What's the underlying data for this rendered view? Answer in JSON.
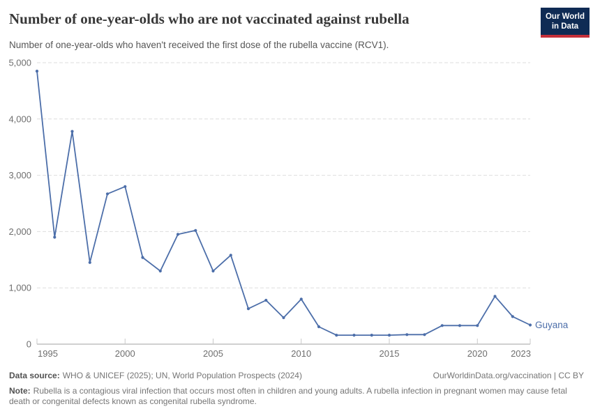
{
  "header": {
    "title": "Number of one-year-olds who are not vaccinated against rubella",
    "subtitle": "Number of one-year-olds who haven't received the first dose of the rubella vaccine (RCV1).",
    "logo": {
      "line1": "Our World",
      "line2": "in Data"
    }
  },
  "chart_data": {
    "type": "line",
    "title": "Number of one-year-olds who are not vaccinated against rubella",
    "subtitle": "Number of one-year-olds who haven't received the first dose of the rubella vaccine (RCV1).",
    "series": [
      {
        "name": "Guyana",
        "color": "#4c6ea9",
        "x": [
          1995,
          1996,
          1997,
          1998,
          1999,
          2000,
          2001,
          2002,
          2003,
          2004,
          2005,
          2006,
          2007,
          2008,
          2009,
          2010,
          2011,
          2012,
          2013,
          2014,
          2015,
          2016,
          2017,
          2018,
          2019,
          2020,
          2021,
          2022,
          2023
        ],
        "values": [
          4850,
          1900,
          3780,
          1450,
          2670,
          2800,
          1540,
          1300,
          1950,
          2020,
          1300,
          1580,
          630,
          780,
          470,
          800,
          310,
          160,
          160,
          160,
          160,
          170,
          170,
          330,
          330,
          330,
          850,
          490,
          340
        ]
      }
    ],
    "xlim": [
      1995,
      2023
    ],
    "ylim": [
      0,
      5000
    ],
    "xticks": [
      1995,
      2000,
      2005,
      2010,
      2015,
      2020,
      2023
    ],
    "yticks": [
      0,
      1000,
      2000,
      3000,
      4000,
      5000
    ],
    "ytick_labels": [
      "0",
      "1,000",
      "2,000",
      "3,000",
      "4,000",
      "5,000"
    ],
    "grid": "horizontal-dashed",
    "legend_position": "line-end",
    "markers": true
  },
  "footer": {
    "datasource_label": "Data source:",
    "datasource_text": "WHO & UNICEF (2025); UN, World Population Prospects (2024)",
    "link": "OurWorldinData.org/vaccination | CC BY",
    "note_label": "Note:",
    "note_text": "Rubella is a contagious viral infection that occurs most often in children and young adults. A rubella infection in pregnant women may cause fetal death or congenital defects known as congenital rubella syndrome."
  },
  "colors": {
    "line": "#4c6ea9",
    "grid": "#dedede",
    "axis": "#a0a0a0",
    "tick": "#c8c8c8",
    "axis_text": "#6e6e6e",
    "logo_bg": "#0f2b54",
    "logo_red": "#c5303a"
  }
}
